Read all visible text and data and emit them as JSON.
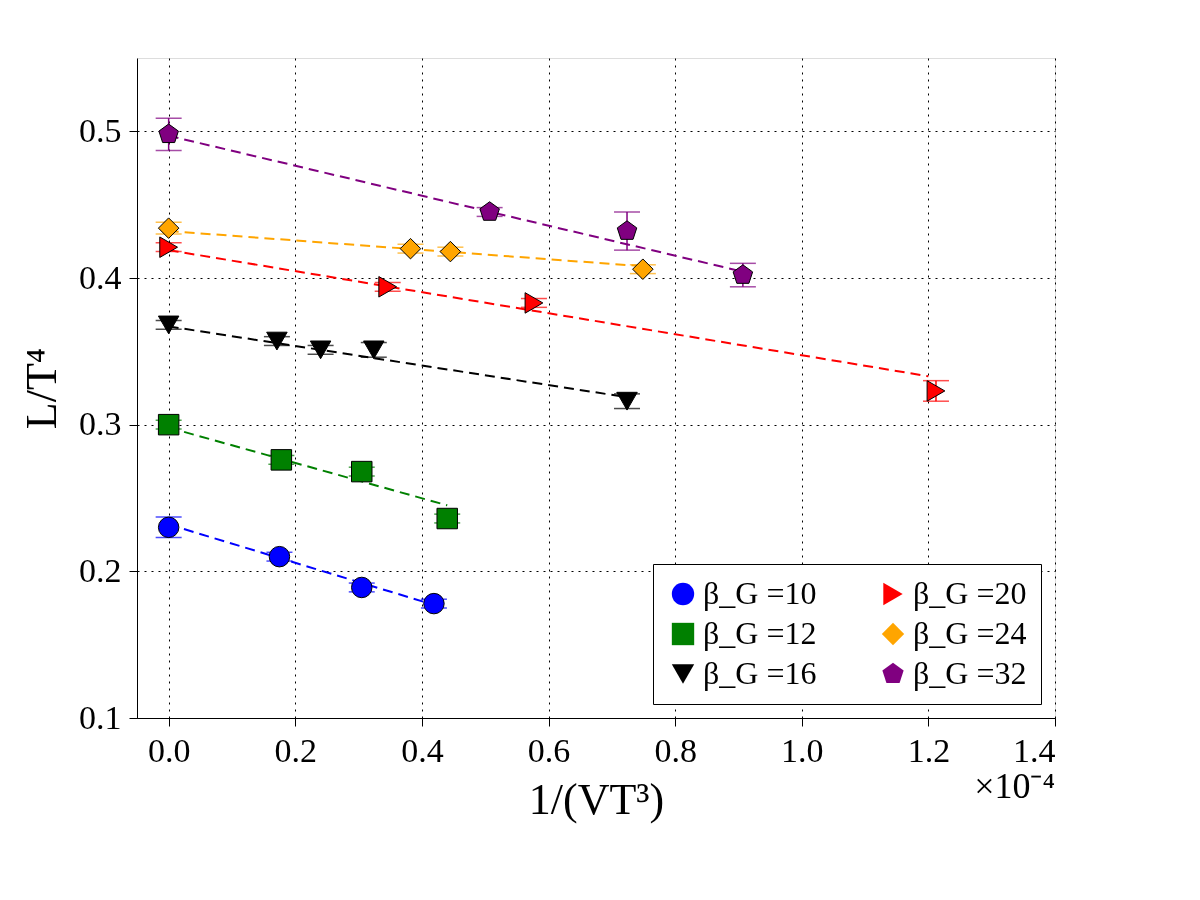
{
  "chart_data": {
    "type": "scatter",
    "xlabel": "1/(VT³)",
    "ylabel": "L/T⁴",
    "annotations": [
      "×10⁻⁴"
    ],
    "xlim": [
      -0.05,
      1.4
    ],
    "xticks": [
      {
        "value": 0,
        "label": "0.0"
      },
      {
        "value": 0.2,
        "label": "0.2"
      },
      {
        "value": 0.4,
        "label": "0.4"
      },
      {
        "value": 0.6,
        "label": "0.6"
      },
      {
        "value": 0.8,
        "label": "0.8"
      },
      {
        "value": 1.0,
        "label": "1.0"
      },
      {
        "value": 1.2,
        "label": "1.2"
      },
      {
        "value": 1.4,
        "label": "1.4"
      }
    ],
    "ylim": [
      0.1,
      0.55
    ],
    "yticks": [
      0.1,
      0.2,
      0.3,
      0.4,
      0.5
    ],
    "grid": true,
    "legend": "bottom right",
    "series": [
      {
        "name": "β_G =10",
        "color": "#0000ff",
        "marker": "circle",
        "x": [
          0,
          0.175,
          0.305,
          0.419
        ],
        "values": [
          0.23,
          0.21,
          0.189,
          0.178
        ],
        "errors": [
          0.007,
          0.003,
          0.003,
          0.003
        ]
      },
      {
        "name": "β_G =12",
        "color": "#008000",
        "marker": "square",
        "x": [
          0,
          0.178,
          0.305,
          0.44
        ],
        "values": [
          0.3,
          0.276,
          0.268,
          0.236
        ],
        "errors": [
          0.003,
          0.003,
          0.003,
          0.003
        ]
      },
      {
        "name": "β_G =16",
        "color": "#000000",
        "marker": "triangle-down",
        "x": [
          0,
          0.171,
          0.24,
          0.324,
          0.724
        ],
        "values": [
          0.368,
          0.357,
          0.351,
          0.351,
          0.316
        ],
        "errors": [
          0.003,
          0.003,
          0.003,
          0.005,
          0.005
        ]
      },
      {
        "name": "β_G =20",
        "color": "#ff0000",
        "marker": "triangle-right",
        "x": [
          0,
          0.346,
          0.577,
          1.212
        ],
        "values": [
          0.421,
          0.394,
          0.383,
          0.323
        ],
        "errors": [
          0.003,
          0.003,
          0.003,
          0.007
        ]
      },
      {
        "name": "β_G =24",
        "color": "#ffa500",
        "marker": "diamond",
        "x": [
          0,
          0.382,
          0.445,
          0.749
        ],
        "values": [
          0.434,
          0.42,
          0.418,
          0.406
        ],
        "errors": [
          0.004,
          0.003,
          0.003,
          0.003
        ]
      },
      {
        "name": "β_G =32",
        "color": "#800080",
        "x": [
          0,
          0.507,
          0.724,
          0.907
        ],
        "values": [
          0.498,
          0.445,
          0.432,
          0.402
        ],
        "errors": [
          0.011,
          0.003,
          0.013,
          0.008
        ]
      },
      {
        "type": "line",
        "color": "#0000ff",
        "line_style": "dashed",
        "x": [
          0,
          0.42
        ],
        "values": [
          0.232,
          0.177
        ]
      },
      {
        "type": "line",
        "color": "#008000",
        "line_style": "dashed",
        "x": [
          0,
          0.44
        ],
        "values": [
          0.298,
          0.245
        ]
      },
      {
        "type": "line",
        "color": "#000000",
        "line_style": "dashed",
        "x": [
          0,
          0.72
        ],
        "values": [
          0.367,
          0.319
        ]
      },
      {
        "type": "line",
        "color": "#ff0000",
        "line_style": "dashed",
        "x": [
          0,
          1.2
        ],
        "values": [
          0.419,
          0.333
        ]
      },
      {
        "type": "line",
        "color": "#ffa500",
        "line_style": "dashed",
        "x": [
          0,
          0.75
        ],
        "values": [
          0.432,
          0.408
        ]
      },
      {
        "type": "line",
        "color": "#800080",
        "line_style": "dashed",
        "x": [
          0,
          0.9
        ],
        "values": [
          0.497,
          0.405
        ]
      }
    ]
  }
}
